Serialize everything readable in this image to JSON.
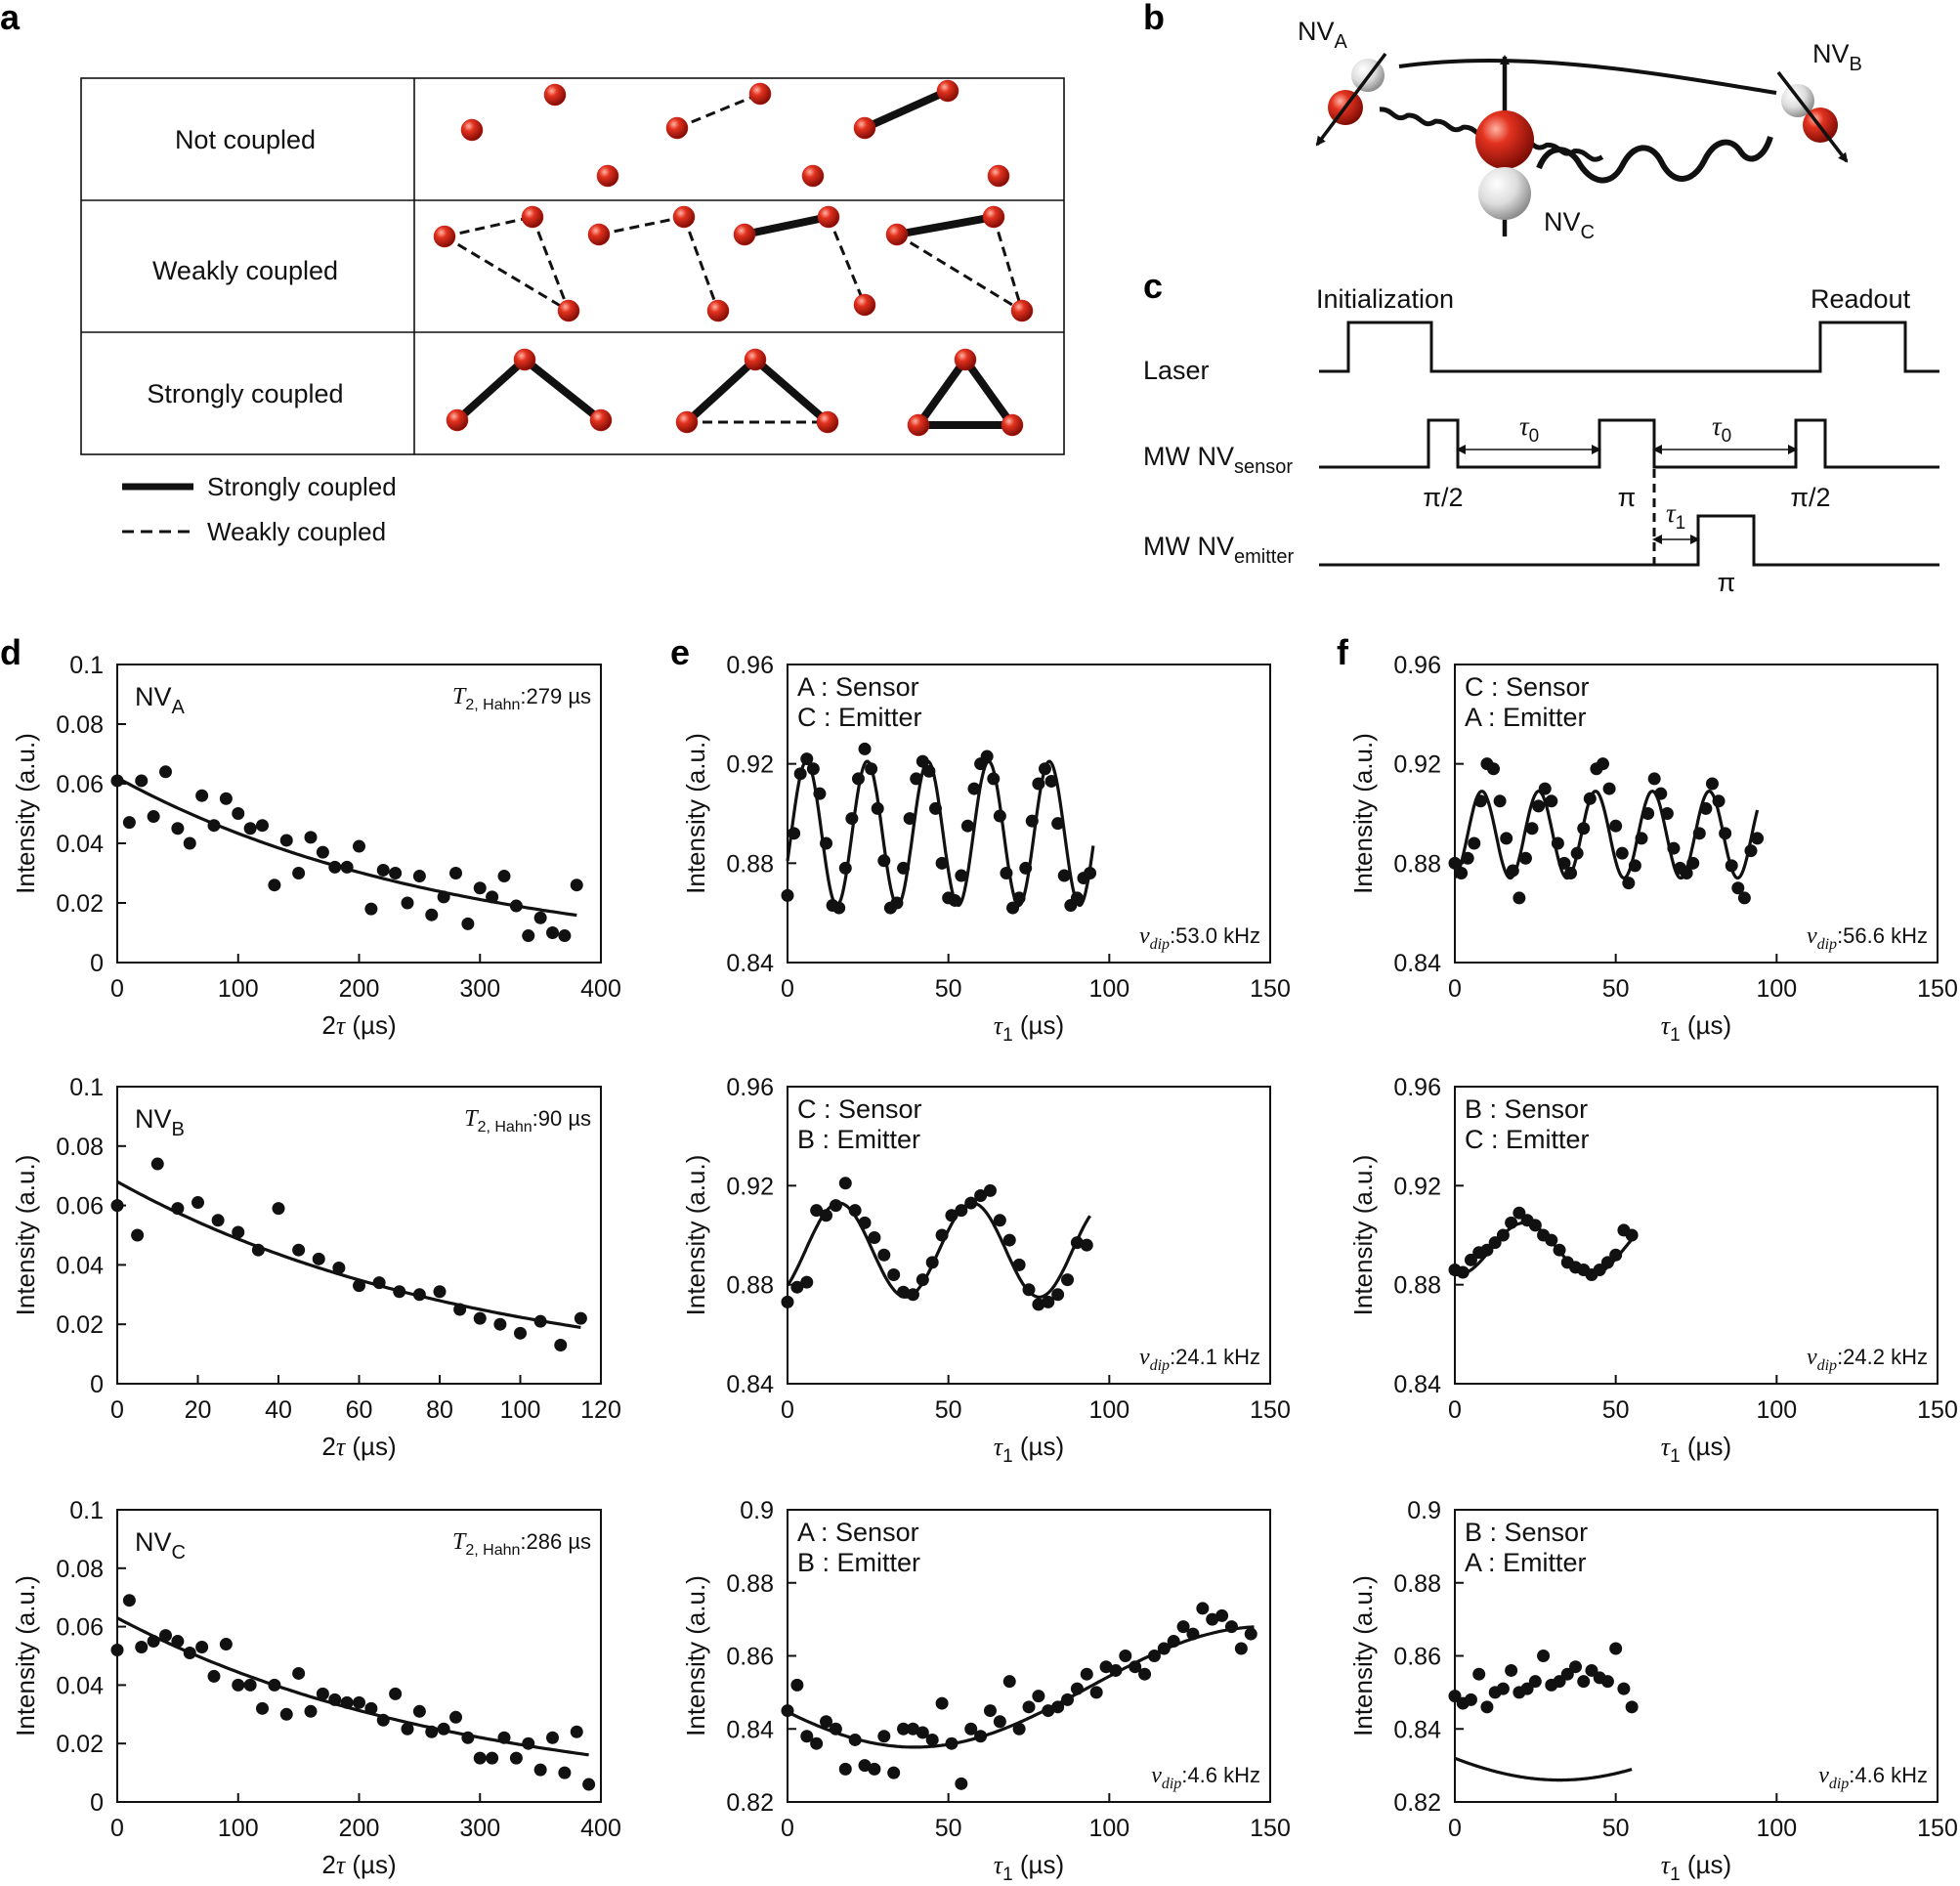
{
  "figure": {
    "panel_labels": [
      "a",
      "b",
      "c",
      "d",
      "e",
      "f"
    ],
    "coupling_table": {
      "rows": [
        "Not coupled",
        "Weakly coupled",
        "Strongly coupled"
      ],
      "legend": {
        "strong": "Strongly coupled",
        "weak": "Weakly coupled"
      },
      "colors": {
        "node": "#c8170e",
        "line": "#111111"
      }
    },
    "nv_diagram": {
      "nv_a": {
        "base": "NV",
        "sub": "A"
      },
      "nv_b": {
        "base": "NV",
        "sub": "B"
      },
      "nv_c": {
        "base": "NV",
        "sub": "C"
      }
    },
    "pulse_sequence": {
      "phase_initialization": "Initialization",
      "phase_readout": "Readout",
      "laser": "Laser",
      "mw_sensor": {
        "base": "MW NV",
        "sub": "sensor"
      },
      "mw_emitter": {
        "base": "MW NV",
        "sub": "emitter"
      },
      "tau0": {
        "base": "τ",
        "sub": "0"
      },
      "tau1": {
        "base": "τ",
        "sub": "1"
      },
      "pi_half": "π/2",
      "pi": "π"
    },
    "axis_text": {
      "ylabel": "Intensity (a.u.)",
      "xlabel_d": {
        "pre": "2",
        "sym": "τ",
        "unit": " (µs)"
      },
      "xlabel_ef": {
        "sym": "τ",
        "sub": "1",
        "unit": " (µs)"
      }
    }
  },
  "chart_data": [
    {
      "id": "d1",
      "type": "scatter",
      "panel": "d",
      "label": {
        "base": "NV",
        "sub": "A"
      },
      "annotation": {
        "sym": "T",
        "sub": "2, Hahn",
        "val": ":279 µs"
      },
      "xlim": [
        0,
        400
      ],
      "ylim": [
        0,
        0.1
      ],
      "xticks": [
        0,
        100,
        200,
        300,
        400
      ],
      "yticks": [
        0,
        0.02,
        0.04,
        0.06,
        0.08,
        0.1
      ],
      "ytick_labels": [
        "0",
        "0.02",
        "0.04",
        "0.06",
        "0.08",
        "0.1"
      ],
      "fit": {
        "model": "exp",
        "a": 0.062,
        "tau": 279
      },
      "x": [
        0,
        10,
        20,
        30,
        40,
        50,
        60,
        70,
        80,
        90,
        100,
        110,
        120,
        130,
        140,
        150,
        160,
        170,
        180,
        190,
        200,
        210,
        220,
        230,
        240,
        250,
        260,
        270,
        280,
        290,
        300,
        310,
        320,
        330,
        340,
        350,
        360,
        370,
        380
      ],
      "y": [
        0.061,
        0.047,
        0.061,
        0.049,
        0.064,
        0.045,
        0.04,
        0.056,
        0.046,
        0.055,
        0.05,
        0.045,
        0.046,
        0.026,
        0.041,
        0.03,
        0.042,
        0.037,
        0.032,
        0.032,
        0.039,
        0.018,
        0.031,
        0.03,
        0.02,
        0.029,
        0.016,
        0.022,
        0.03,
        0.013,
        0.025,
        0.022,
        0.029,
        0.019,
        0.009,
        0.015,
        0.01,
        0.009,
        0.026
      ]
    },
    {
      "id": "d2",
      "type": "scatter",
      "panel": "d",
      "label": {
        "base": "NV",
        "sub": "B"
      },
      "annotation": {
        "sym": "T",
        "sub": "2, Hahn",
        "val": ":90 µs"
      },
      "xlim": [
        0,
        120
      ],
      "ylim": [
        0,
        0.1
      ],
      "xticks": [
        0,
        20,
        40,
        60,
        80,
        100,
        120
      ],
      "yticks": [
        0,
        0.02,
        0.04,
        0.06,
        0.08,
        0.1
      ],
      "ytick_labels": [
        "0",
        "0.02",
        "0.04",
        "0.06",
        "0.08",
        "0.1"
      ],
      "fit": {
        "model": "exp",
        "a": 0.068,
        "tau": 90
      },
      "x": [
        0,
        5,
        10,
        15,
        20,
        25,
        30,
        35,
        40,
        45,
        50,
        55,
        60,
        65,
        70,
        75,
        80,
        85,
        90,
        95,
        100,
        105,
        110,
        115
      ],
      "y": [
        0.06,
        0.05,
        0.074,
        0.059,
        0.061,
        0.055,
        0.051,
        0.045,
        0.059,
        0.045,
        0.042,
        0.039,
        0.033,
        0.034,
        0.031,
        0.03,
        0.031,
        0.025,
        0.022,
        0.02,
        0.017,
        0.021,
        0.013,
        0.022
      ]
    },
    {
      "id": "d3",
      "type": "scatter",
      "panel": "d",
      "label": {
        "base": "NV",
        "sub": "C"
      },
      "annotation": {
        "sym": "T",
        "sub": "2, Hahn",
        "val": ":286 µs"
      },
      "xlim": [
        0,
        400
      ],
      "ylim": [
        0,
        0.1
      ],
      "xticks": [
        0,
        100,
        200,
        300,
        400
      ],
      "yticks": [
        0,
        0.02,
        0.04,
        0.06,
        0.08,
        0.1
      ],
      "ytick_labels": [
        "0",
        "0.02",
        "0.04",
        "0.06",
        "0.08",
        "0.1"
      ],
      "fit": {
        "model": "exp",
        "a": 0.063,
        "tau": 286
      },
      "x": [
        0,
        10,
        20,
        30,
        40,
        50,
        60,
        70,
        80,
        90,
        100,
        110,
        120,
        130,
        140,
        150,
        160,
        170,
        180,
        190,
        200,
        210,
        220,
        230,
        240,
        250,
        260,
        270,
        280,
        290,
        300,
        310,
        320,
        330,
        340,
        350,
        360,
        370,
        380,
        390
      ],
      "y": [
        0.052,
        0.069,
        0.053,
        0.055,
        0.057,
        0.055,
        0.051,
        0.053,
        0.043,
        0.054,
        0.04,
        0.04,
        0.032,
        0.04,
        0.03,
        0.044,
        0.031,
        0.037,
        0.035,
        0.034,
        0.034,
        0.032,
        0.028,
        0.037,
        0.025,
        0.031,
        0.024,
        0.025,
        0.029,
        0.022,
        0.015,
        0.015,
        0.022,
        0.015,
        0.02,
        0.011,
        0.022,
        0.01,
        0.024,
        0.006
      ]
    },
    {
      "id": "e1",
      "type": "scatter",
      "panel": "e",
      "legend": [
        "A : Sensor",
        "C : Emitter"
      ],
      "annotation": {
        "sym": "ν",
        "sub": "dip",
        "val": ":53.0 kHz"
      },
      "xlim": [
        0,
        150
      ],
      "ylim": [
        0.84,
        0.96
      ],
      "xticks": [
        0,
        50,
        100,
        150
      ],
      "yticks": [
        0.84,
        0.88,
        0.92,
        0.96
      ],
      "ytick_labels": [
        "0.84",
        "0.88",
        "0.92",
        "0.96"
      ],
      "fit": {
        "model": "cos",
        "c": 0.892,
        "amp": 0.029,
        "f": 0.053,
        "phi": 4.32,
        "xmin": 0,
        "xmax": 95
      },
      "x": [
        0,
        2,
        4,
        6,
        8,
        10,
        12,
        14,
        16,
        18,
        20,
        22,
        24,
        26,
        28,
        30,
        32,
        34,
        36,
        38,
        40,
        42,
        44,
        46,
        48,
        50,
        52,
        54,
        56,
        58,
        60,
        62,
        64,
        66,
        68,
        70,
        72,
        74,
        76,
        78,
        80,
        82,
        84,
        86,
        88,
        90,
        92,
        94
      ],
      "y": [
        0.867,
        0.892,
        0.916,
        0.922,
        0.918,
        0.908,
        0.888,
        0.863,
        0.862,
        0.878,
        0.898,
        0.914,
        0.926,
        0.918,
        0.902,
        0.881,
        0.862,
        0.864,
        0.878,
        0.898,
        0.914,
        0.921,
        0.917,
        0.902,
        0.88,
        0.866,
        0.865,
        0.875,
        0.895,
        0.91,
        0.92,
        0.923,
        0.914,
        0.899,
        0.876,
        0.862,
        0.866,
        0.878,
        0.897,
        0.912,
        0.918,
        0.913,
        0.896,
        0.875,
        0.863,
        0.866,
        0.874,
        0.876
      ]
    },
    {
      "id": "e2",
      "type": "scatter",
      "panel": "e",
      "legend": [
        "C : Sensor",
        "B : Emitter"
      ],
      "annotation": {
        "sym": "ν",
        "sub": "dip",
        "val": ":24.1 kHz"
      },
      "xlim": [
        0,
        150
      ],
      "ylim": [
        0.84,
        0.96
      ],
      "xticks": [
        0,
        50,
        100,
        150
      ],
      "yticks": [
        0.84,
        0.88,
        0.92,
        0.96
      ],
      "ytick_labels": [
        "0.84",
        "0.88",
        "0.92",
        "0.96"
      ],
      "fit": {
        "model": "cos",
        "c": 0.894,
        "amp": 0.019,
        "f": 0.0241,
        "phi": 3.86,
        "xmin": 0,
        "xmax": 94
      },
      "x": [
        0,
        3,
        6,
        9,
        12,
        15,
        18,
        21,
        24,
        27,
        30,
        33,
        36,
        39,
        42,
        45,
        48,
        51,
        54,
        57,
        60,
        63,
        66,
        69,
        72,
        75,
        78,
        81,
        84,
        87,
        90,
        93
      ],
      "y": [
        0.873,
        0.879,
        0.881,
        0.91,
        0.908,
        0.912,
        0.921,
        0.91,
        0.905,
        0.899,
        0.892,
        0.884,
        0.877,
        0.876,
        0.882,
        0.889,
        0.9,
        0.908,
        0.91,
        0.913,
        0.916,
        0.918,
        0.906,
        0.898,
        0.888,
        0.878,
        0.872,
        0.873,
        0.876,
        0.882,
        0.897,
        0.896
      ]
    },
    {
      "id": "e3",
      "type": "scatter",
      "panel": "e",
      "legend": [
        "A : Sensor",
        "B : Emitter"
      ],
      "annotation": {
        "sym": "ν",
        "sub": "dip",
        "val": ":4.6 kHz"
      },
      "xlim": [
        0,
        150
      ],
      "ylim": [
        0.82,
        0.9
      ],
      "xticks": [
        0,
        50,
        100,
        150
      ],
      "yticks": [
        0.82,
        0.84,
        0.86,
        0.88,
        0.9
      ],
      "ytick_labels": [
        "0.82",
        "0.84",
        "0.86",
        "0.88",
        "0.9"
      ],
      "fit": {
        "model": "cos",
        "c": 0.8515,
        "amp": 0.0165,
        "f": 0.0046,
        "phi": 2.0,
        "xmin": 0,
        "xmax": 145
      },
      "x": [
        0,
        3,
        6,
        9,
        12,
        15,
        18,
        21,
        24,
        27,
        30,
        33,
        36,
        39,
        42,
        45,
        48,
        51,
        54,
        57,
        60,
        63,
        66,
        69,
        72,
        75,
        78,
        81,
        84,
        87,
        90,
        93,
        96,
        99,
        102,
        105,
        108,
        111,
        114,
        117,
        120,
        123,
        126,
        129,
        132,
        135,
        138,
        141,
        144
      ],
      "y": [
        0.845,
        0.852,
        0.838,
        0.836,
        0.842,
        0.84,
        0.829,
        0.837,
        0.83,
        0.829,
        0.838,
        0.828,
        0.84,
        0.84,
        0.839,
        0.837,
        0.847,
        0.836,
        0.825,
        0.84,
        0.838,
        0.845,
        0.842,
        0.853,
        0.84,
        0.846,
        0.849,
        0.845,
        0.846,
        0.848,
        0.851,
        0.855,
        0.85,
        0.857,
        0.856,
        0.86,
        0.857,
        0.855,
        0.86,
        0.862,
        0.864,
        0.868,
        0.866,
        0.873,
        0.87,
        0.871,
        0.868,
        0.862,
        0.866
      ]
    },
    {
      "id": "f1",
      "type": "scatter",
      "panel": "f",
      "legend": [
        "C : Sensor",
        "A : Emitter"
      ],
      "annotation": {
        "sym": "ν",
        "sub": "dip",
        "val": ":56.6 kHz"
      },
      "xlim": [
        0,
        150
      ],
      "ylim": [
        0.84,
        0.96
      ],
      "xticks": [
        0,
        50,
        100,
        150
      ],
      "yticks": [
        0.84,
        0.88,
        0.92,
        0.96
      ],
      "ytick_labels": [
        "0.84",
        "0.88",
        "0.92",
        "0.96"
      ],
      "fit": {
        "model": "cos",
        "c": 0.8915,
        "amp": 0.0175,
        "f": 0.0566,
        "phi": 3.3,
        "xmin": 0,
        "xmax": 94
      },
      "x": [
        0,
        2,
        4,
        6,
        8,
        10,
        12,
        14,
        16,
        18,
        20,
        22,
        24,
        26,
        28,
        30,
        32,
        34,
        36,
        38,
        40,
        42,
        44,
        46,
        48,
        50,
        52,
        54,
        56,
        58,
        60,
        62,
        64,
        66,
        68,
        70,
        72,
        74,
        76,
        78,
        80,
        82,
        84,
        86,
        88,
        90,
        92,
        94
      ],
      "y": [
        0.88,
        0.876,
        0.882,
        0.888,
        0.905,
        0.92,
        0.918,
        0.905,
        0.89,
        0.877,
        0.866,
        0.882,
        0.894,
        0.903,
        0.91,
        0.905,
        0.888,
        0.88,
        0.876,
        0.884,
        0.894,
        0.906,
        0.918,
        0.92,
        0.91,
        0.895,
        0.884,
        0.872,
        0.879,
        0.89,
        0.9,
        0.914,
        0.908,
        0.9,
        0.886,
        0.878,
        0.876,
        0.88,
        0.892,
        0.902,
        0.912,
        0.905,
        0.892,
        0.879,
        0.87,
        0.866,
        0.885,
        0.89
      ]
    },
    {
      "id": "f2",
      "type": "scatter",
      "panel": "f",
      "legend": [
        "B : Sensor",
        "C : Emitter"
      ],
      "annotation": {
        "sym": "ν",
        "sub": "dip",
        "val": ":24.2 kHz"
      },
      "xlim": [
        0,
        150
      ],
      "ylim": [
        0.84,
        0.96
      ],
      "xticks": [
        0,
        50,
        100,
        150
      ],
      "yticks": [
        0.84,
        0.88,
        0.92,
        0.96
      ],
      "ytick_labels": [
        "0.84",
        "0.88",
        "0.92",
        "0.96"
      ],
      "fit": {
        "model": "cos",
        "c": 0.8945,
        "amp": 0.0105,
        "f": 0.0242,
        "phi": 3.0,
        "xmin": 0,
        "xmax": 55
      },
      "x": [
        0,
        2.5,
        5,
        7.5,
        10,
        12.5,
        15,
        17.5,
        20,
        22.5,
        25,
        27.5,
        30,
        32.5,
        35,
        37.5,
        40,
        42.5,
        45,
        47.5,
        50,
        52.5,
        55
      ],
      "y": [
        0.886,
        0.885,
        0.89,
        0.893,
        0.894,
        0.897,
        0.9,
        0.905,
        0.909,
        0.906,
        0.904,
        0.9,
        0.898,
        0.894,
        0.889,
        0.887,
        0.886,
        0.884,
        0.886,
        0.889,
        0.892,
        0.902,
        0.9
      ]
    },
    {
      "id": "f3",
      "type": "scatter",
      "panel": "f",
      "legend": [
        "B : Sensor",
        "A : Emitter"
      ],
      "annotation": {
        "sym": "ν",
        "sub": "dip",
        "val": ":4.6 kHz"
      },
      "xlim": [
        0,
        150
      ],
      "ylim": [
        0.82,
        0.9
      ],
      "xticks": [
        0,
        50,
        100,
        150
      ],
      "yticks": [
        0.82,
        0.84,
        0.86,
        0.88,
        0.9
      ],
      "ytick_labels": [
        "0.82",
        "0.84",
        "0.86",
        "0.88",
        "0.9"
      ],
      "fit": {
        "model": "cos",
        "c": 0.8405,
        "amp": 0.0145,
        "f": 0.0046,
        "phi": 2.2,
        "xmin": 0,
        "xmax": 55
      },
      "x": [
        0,
        2.5,
        5,
        7.5,
        10,
        12.5,
        15,
        17.5,
        20,
        22.5,
        25,
        27.5,
        30,
        32.5,
        35,
        37.5,
        40,
        42.5,
        45,
        47.5,
        50,
        52.5,
        55
      ],
      "y": [
        0.849,
        0.847,
        0.848,
        0.855,
        0.846,
        0.85,
        0.851,
        0.856,
        0.85,
        0.851,
        0.853,
        0.86,
        0.852,
        0.853,
        0.855,
        0.857,
        0.853,
        0.856,
        0.854,
        0.853,
        0.862,
        0.851,
        0.846
      ]
    }
  ]
}
